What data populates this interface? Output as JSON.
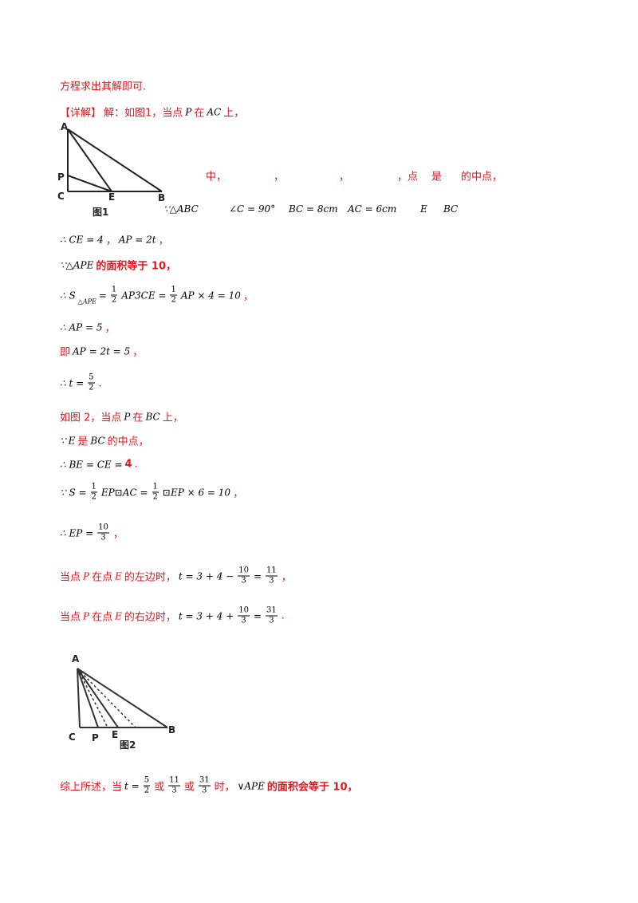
{
  "lines": [
    [
      "方程求出其解即可."
    ],
    [
      "【详解】",
      "解：如图1，当点",
      "P",
      "在",
      "AC",
      "上，"
    ],
    [
      "中，",
      "，",
      "，",
      "，点",
      "是",
      "的中点，"
    ],
    [
      "∵△ABC",
      "∠C = 90°",
      "BC = 8cm",
      "AC = 6cm",
      "E",
      "BC"
    ],
    [
      "∴ CE = 4",
      "，",
      "AP = 2t",
      "，"
    ],
    [
      "∵△APE",
      "的面积等于 10，"
    ],
    [
      "∴ S",
      "△APE",
      "=",
      {
        "num": "1",
        "den": "2"
      },
      "AP3CE =",
      {
        "num": "1",
        "den": "2"
      },
      "AP × 4 = 10",
      "，"
    ],
    [
      "∴ AP = 5",
      "，"
    ],
    [
      "即",
      "AP = 2t = 5",
      "，"
    ],
    [
      "∴ t =",
      {
        "num": "5",
        "den": "2"
      },
      "."
    ],
    [
      "如图 2，当点",
      "P",
      "在",
      "BC",
      "上，"
    ],
    [
      "∵",
      "E",
      "是",
      "BC",
      "的中点，"
    ],
    [
      "∴ BE = CE = ",
      "4",
      "."
    ],
    [
      "∵ S =",
      {
        "num": "1",
        "den": "2"
      },
      "EP⊡AC =",
      {
        "num": "1",
        "den": "2"
      },
      "⊡EP × 6 = 10",
      "，"
    ],
    [
      "∴ EP =",
      {
        "num": "10",
        "den": "3"
      },
      "，"
    ],
    [
      "当点",
      "P",
      "在点",
      "E",
      "的左边时，",
      "t = 3 + 4 −",
      {
        "num": "10",
        "den": "3"
      },
      "=",
      {
        "num": "11",
        "den": "3"
      },
      "，"
    ],
    [
      "当点",
      "P",
      "在点",
      "E",
      "的右边时，",
      "t = 3 + 4 +",
      {
        "num": "10",
        "den": "3"
      },
      "=",
      {
        "num": "31",
        "den": "3"
      },
      "."
    ],
    [
      "综上所述，当",
      "t =",
      {
        "num": "5",
        "den": "2"
      },
      "或",
      {
        "num": "11",
        "den": "3"
      },
      "或",
      {
        "num": "31",
        "den": "3"
      },
      "时，",
      "∨APE",
      "的面积会等于 10，"
    ]
  ],
  "figure1": [
    "A",
    "P",
    "C",
    "E",
    "B",
    "图1"
  ],
  "figure2": [
    "A",
    "C",
    "P",
    "E",
    "B",
    "图2"
  ]
}
